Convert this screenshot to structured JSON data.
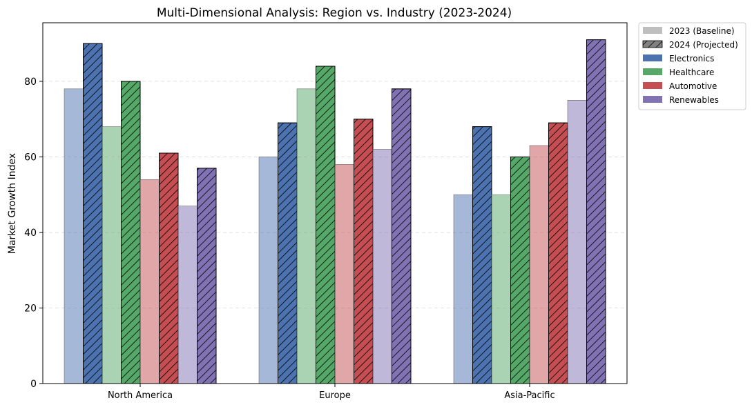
{
  "chart_data": {
    "type": "bar",
    "title": "Multi-Dimensional Analysis: Region vs. Industry (2023-2024)",
    "xlabel": "",
    "ylabel": "Market Growth Index",
    "ylim": [
      0,
      95.5
    ],
    "yticks": [
      0,
      20,
      40,
      60,
      80
    ],
    "grid": "y-dashed",
    "legend_position": "outside-top-right",
    "categories": [
      "North America",
      "Europe",
      "Asia-Pacific"
    ],
    "industries": [
      "Electronics",
      "Healthcare",
      "Automotive",
      "Renewables"
    ],
    "colors": {
      "Electronics": "#4c72b0",
      "Healthcare": "#55a868",
      "Automotive": "#c44e52",
      "Renewables": "#8172b3"
    },
    "series": [
      {
        "industry": "Electronics",
        "year": "2023",
        "values": [
          78,
          60,
          50
        ]
      },
      {
        "industry": "Electronics",
        "year": "2024",
        "values": [
          90,
          69,
          68
        ]
      },
      {
        "industry": "Healthcare",
        "year": "2023",
        "values": [
          68,
          78,
          50
        ]
      },
      {
        "industry": "Healthcare",
        "year": "2024",
        "values": [
          80,
          84,
          60
        ]
      },
      {
        "industry": "Automotive",
        "year": "2023",
        "values": [
          54,
          58,
          63
        ]
      },
      {
        "industry": "Automotive",
        "year": "2024",
        "values": [
          61,
          70,
          69
        ]
      },
      {
        "industry": "Renewables",
        "year": "2023",
        "values": [
          47,
          62,
          75
        ]
      },
      {
        "industry": "Renewables",
        "year": "2024",
        "values": [
          57,
          78,
          91
        ]
      }
    ],
    "legend": [
      {
        "label": "2023 (Baseline)",
        "style": "solid-gray"
      },
      {
        "label": "2024 (Projected)",
        "style": "hatched-gray"
      },
      {
        "label": "Electronics",
        "style": "solid",
        "color": "#4c72b0"
      },
      {
        "label": "Healthcare",
        "style": "solid",
        "color": "#55a868"
      },
      {
        "label": "Automotive",
        "style": "solid",
        "color": "#c44e52"
      },
      {
        "label": "Renewables",
        "style": "solid",
        "color": "#8172b3"
      }
    ]
  }
}
